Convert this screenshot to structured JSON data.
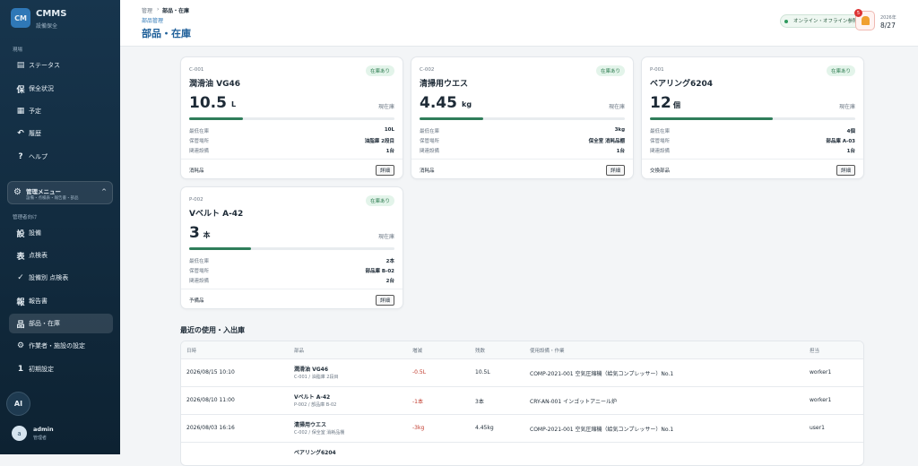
{
  "sidebar": {
    "logo": "CM",
    "app": "CMMS",
    "sub": "設備保全",
    "section1": "現場",
    "nav1": [
      {
        "icon": "▤",
        "label": "ステータス"
      },
      {
        "icon": "保",
        "label": "保全状況"
      },
      {
        "icon": "▦",
        "label": "予定"
      },
      {
        "icon": "↶",
        "label": "履歴"
      },
      {
        "icon": "?",
        "label": "ヘルプ"
      }
    ],
    "admin_menu": {
      "icon": "⚙",
      "title": "管理メニュー",
      "sub": "設備・点検表・報告書・部品",
      "toggle": "^"
    },
    "section2": "管理者向け",
    "nav2": [
      {
        "icon": "設",
        "label": "設備"
      },
      {
        "icon": "表",
        "label": "点検表"
      },
      {
        "icon": "✓",
        "label": "設備別 点検表"
      },
      {
        "icon": "報",
        "label": "報告書"
      },
      {
        "icon": "品",
        "label": "部品・在庫",
        "active": true
      },
      {
        "icon": "⚙",
        "label": "作業者・施設の設定"
      },
      {
        "icon": "1",
        "label": "初期設定"
      }
    ],
    "ai": "AI",
    "user": {
      "avatar": "a",
      "name": "admin",
      "role": "管理者"
    }
  },
  "header": {
    "breadcrumb": [
      "管理",
      "部品・在庫"
    ],
    "separator": "›",
    "sub": "部品管理",
    "title": "部品・在庫",
    "status": "オンライン・オフライン参照可",
    "badge": "5",
    "year": "2026年",
    "date": "8/27"
  },
  "cards": [
    {
      "code": "C-001",
      "badge": "在庫あり",
      "name": "潤滑油 VG46",
      "qty": "10.5",
      "unit": "L",
      "qty_label": "現在庫",
      "rows": [
        [
          "最低在庫",
          "10L"
        ],
        [
          "保管場所",
          "油脂庫 2段目"
        ],
        [
          "関連設備",
          "1台"
        ]
      ],
      "category": "消耗品",
      "button": "詳細"
    },
    {
      "code": "C-002",
      "badge": "在庫あり",
      "name": "清掃用ウエス",
      "qty": "4.45",
      "unit": "kg",
      "qty_label": "現在庫",
      "rows": [
        [
          "最低在庫",
          "3kg"
        ],
        [
          "保管場所",
          "保全室 消耗品棚"
        ],
        [
          "関連設備",
          "1台"
        ]
      ],
      "category": "消耗品",
      "button": "詳細"
    },
    {
      "code": "P-001",
      "badge": "在庫あり",
      "name": "ベアリング6204",
      "qty": "12",
      "unit": "個",
      "qty_label": "現在庫",
      "rows": [
        [
          "最低在庫",
          "4個"
        ],
        [
          "保管場所",
          "部品庫 A-03"
        ],
        [
          "関連設備",
          "1台"
        ]
      ],
      "category": "交換部品",
      "button": "詳細"
    },
    {
      "code": "P-002",
      "badge": "在庫あり",
      "name": "Vベルト A-42",
      "qty": "3",
      "unit": "本",
      "qty_label": "現在庫",
      "rows": [
        [
          "最低在庫",
          "2本"
        ],
        [
          "保管場所",
          "部品庫 B-02"
        ],
        [
          "関連設備",
          "2台"
        ]
      ],
      "category": "予備品",
      "button": "詳細"
    }
  ],
  "history": {
    "title": "最近の使用・入出庫",
    "columns": [
      "日時",
      "部品",
      "増減",
      "残数",
      "使用設備・作業",
      "担当"
    ],
    "rows": [
      {
        "date": "2026/08/15 10:10",
        "part": "潤滑油 VG46",
        "part_sub": "C-001 / 油脂庫 2段目",
        "delta": "-0.5L",
        "remain": "10.5L",
        "equipment": "COMP-2021-001 空気圧縮機（給気コンプレッサー）No.1",
        "user": "worker1"
      },
      {
        "date": "2026/08/10 11:00",
        "part": "Vベルト A-42",
        "part_sub": "P-002 / 部品庫 B-02",
        "delta": "-1本",
        "remain": "3本",
        "equipment": "CRY-AN-001 インゴットアニール炉",
        "user": "worker1"
      },
      {
        "date": "2026/08/03 16:16",
        "part": "清掃用ウエス",
        "part_sub": "C-002 / 保全室 消耗品棚",
        "delta": "-3kg",
        "remain": "4.45kg",
        "equipment": "COMP-2021-001 空気圧縮機（給気コンプレッサー）No.1",
        "user": "user1"
      },
      {
        "part": "ベアリング6204"
      }
    ]
  }
}
